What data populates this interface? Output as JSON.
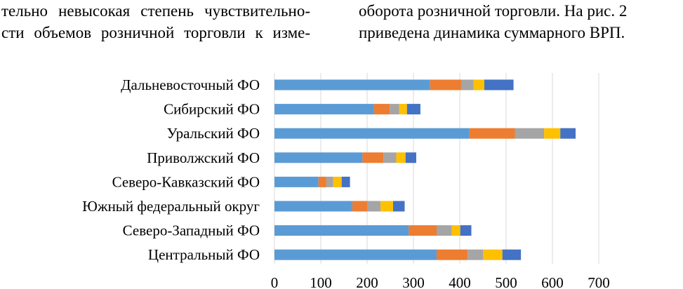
{
  "text": {
    "left_lines": [
      "тельно невысокая степень чувствительно-",
      "сти объемов розничной торговли к изме-"
    ],
    "right_lines": [
      "оборота розничной торговли. На рис. 2",
      "приведена динамика суммарного ВРП."
    ]
  },
  "colors": {
    "segments": [
      "#5b9bd5",
      "#ed7d31",
      "#a5a5a5",
      "#ffc000",
      "#4472c4"
    ],
    "grid": "#d9d9d9"
  },
  "chart_data": {
    "type": "bar",
    "orientation": "horizontal",
    "stacked": true,
    "title": "",
    "xlabel": "",
    "ylabel": "",
    "xlim": [
      0,
      700
    ],
    "xticks": [
      0,
      100,
      200,
      300,
      400,
      500,
      600,
      700
    ],
    "grid": true,
    "categories": [
      "Дальневосточный ФО",
      "Сибирский ФО",
      "Уральский ФО",
      "Приволжский ФО",
      "Северо-Кавказский ФО",
      "Южный федеральный округ",
      "Северо-Западный ФО",
      "Центральный ФО"
    ],
    "series": [
      {
        "name": "",
        "values": [
          336,
          215,
          421,
          190,
          95,
          168,
          290,
          350
        ]
      },
      {
        "name": "",
        "values": [
          67,
          34,
          98,
          45,
          17,
          33,
          60,
          67
        ]
      },
      {
        "name": "",
        "values": [
          27,
          20,
          63,
          28,
          15,
          28,
          33,
          33
        ]
      },
      {
        "name": "",
        "values": [
          23,
          17,
          35,
          20,
          18,
          27,
          18,
          42
        ]
      },
      {
        "name": "",
        "values": [
          63,
          29,
          33,
          23,
          18,
          25,
          24,
          40
        ]
      }
    ]
  }
}
